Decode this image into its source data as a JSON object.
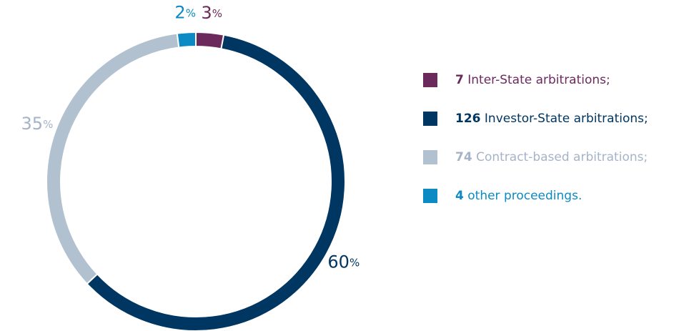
{
  "chart_data": {
    "type": "donut",
    "categories": [
      "Inter-State arbitrations;",
      "Investor-State arbitrations;",
      "Contract-based arbitrations;",
      "other proceedings."
    ],
    "values": [
      3,
      60,
      35,
      2
    ],
    "unit": "%",
    "counts": [
      7,
      126,
      74,
      4
    ],
    "colors": [
      "#6c2a5c",
      "#003662",
      "#b1c1d0",
      "#0c8ac4"
    ],
    "text_colors": [
      "#6c2a5c",
      "#003662",
      "#a5b3c9",
      "#0c8ac4"
    ]
  }
}
